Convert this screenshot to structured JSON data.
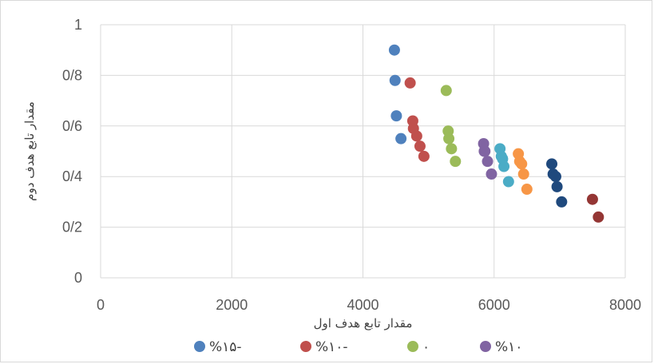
{
  "chart_data": {
    "type": "scatter",
    "xlabel": "مقدار تابع هدف اول",
    "ylabel": "مقدار تابع هدف دوم",
    "xlim": [
      0,
      8000
    ],
    "ylim": [
      0,
      1
    ],
    "x_ticks": [
      0,
      2000,
      4000,
      6000,
      8000
    ],
    "y_ticks": [
      0,
      0.2,
      0.4,
      0.6,
      0.8,
      1
    ],
    "x_tick_labels": [
      "0",
      "2000",
      "4000",
      "6000",
      "8000"
    ],
    "y_tick_labels": [
      "0",
      "0/2",
      "0/4",
      "0/6",
      "0/8",
      "1"
    ],
    "grid": true,
    "legend_position": "bottom",
    "series": [
      {
        "name": "%۱۵-",
        "color": "#4F81BD",
        "in_legend": true,
        "points": [
          [
            4480,
            0.9
          ],
          [
            4490,
            0.78
          ],
          [
            4510,
            0.64
          ],
          [
            4580,
            0.55
          ]
        ]
      },
      {
        "name": "%۱۰-",
        "color": "#C0504D",
        "in_legend": true,
        "points": [
          [
            4720,
            0.77
          ],
          [
            4760,
            0.62
          ],
          [
            4770,
            0.59
          ],
          [
            4820,
            0.56
          ],
          [
            4870,
            0.52
          ],
          [
            4930,
            0.48
          ]
        ]
      },
      {
        "name": "۰",
        "color": "#9BBB59",
        "in_legend": true,
        "points": [
          [
            5270,
            0.74
          ],
          [
            5300,
            0.58
          ],
          [
            5310,
            0.55
          ],
          [
            5350,
            0.51
          ],
          [
            5410,
            0.46
          ]
        ]
      },
      {
        "name": "%۱۰",
        "color": "#8064A2",
        "in_legend": true,
        "points": [
          [
            5840,
            0.53
          ],
          [
            5850,
            0.5
          ],
          [
            5860,
            0.5
          ],
          [
            5900,
            0.46
          ],
          [
            5960,
            0.41
          ]
        ]
      },
      {
        "name": "",
        "color": "#4BACC6",
        "in_legend": false,
        "points": [
          [
            6090,
            0.51
          ],
          [
            6110,
            0.48
          ],
          [
            6130,
            0.47
          ],
          [
            6150,
            0.44
          ],
          [
            6220,
            0.38
          ]
        ]
      },
      {
        "name": "",
        "color": "#F79646",
        "in_legend": false,
        "points": [
          [
            6370,
            0.49
          ],
          [
            6390,
            0.46
          ],
          [
            6420,
            0.45
          ],
          [
            6450,
            0.41
          ],
          [
            6500,
            0.35
          ]
        ]
      },
      {
        "name": "",
        "color": "#1F497D",
        "in_legend": false,
        "points": [
          [
            6880,
            0.45
          ],
          [
            6900,
            0.41
          ],
          [
            6940,
            0.4
          ],
          [
            6960,
            0.36
          ],
          [
            7030,
            0.3
          ]
        ]
      },
      {
        "name": "",
        "color": "#943634",
        "in_legend": false,
        "points": [
          [
            7500,
            0.31
          ],
          [
            7590,
            0.24
          ]
        ]
      }
    ]
  }
}
